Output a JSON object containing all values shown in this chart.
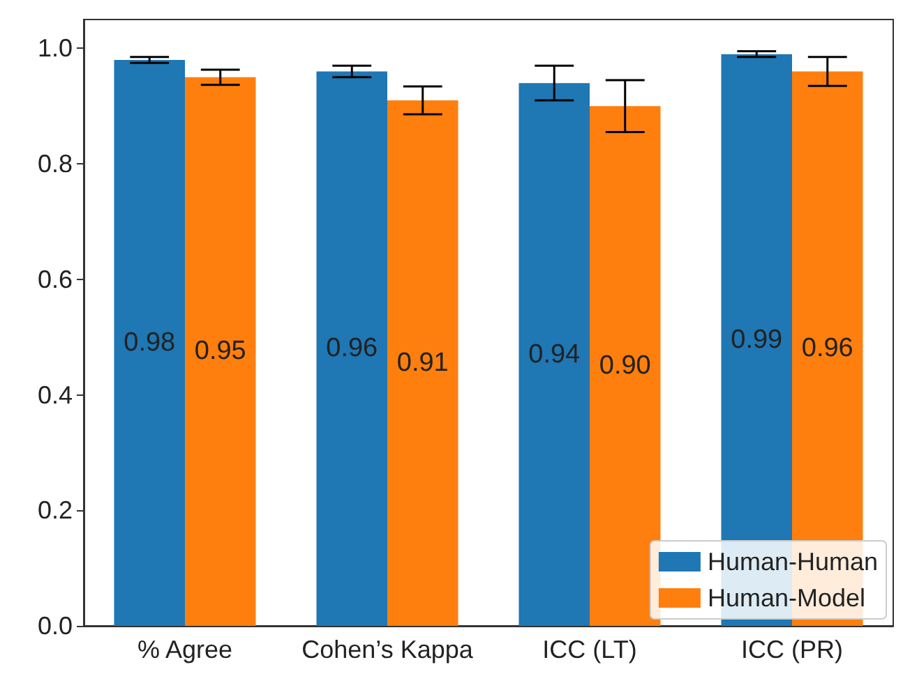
{
  "chart_data": {
    "type": "bar",
    "categories": [
      "% Agree",
      "Cohen’s Kappa",
      "ICC (LT)",
      "ICC (PR)"
    ],
    "series": [
      {
        "name": "Human-Human",
        "color": "#1f77b4",
        "values": [
          0.98,
          0.96,
          0.94,
          0.99
        ],
        "errors": [
          0.005,
          0.01,
          0.03,
          0.005
        ],
        "value_labels": [
          "0.98",
          "0.96",
          "0.94",
          "0.99"
        ]
      },
      {
        "name": "Human-Model",
        "color": "#ff7f0e",
        "values": [
          0.95,
          0.91,
          0.9,
          0.96
        ],
        "errors": [
          0.013,
          0.024,
          0.045,
          0.025
        ],
        "value_labels": [
          "0.95",
          "0.91",
          "0.90",
          "0.96"
        ]
      }
    ],
    "ylim": [
      0,
      1.05
    ],
    "yticks": [
      {
        "value": 0,
        "label": "0.0"
      },
      0.2,
      0.4,
      0.6,
      0.8,
      {
        "value": 1,
        "label": "1.0"
      }
    ],
    "grid": false,
    "legend": "bottom right"
  }
}
